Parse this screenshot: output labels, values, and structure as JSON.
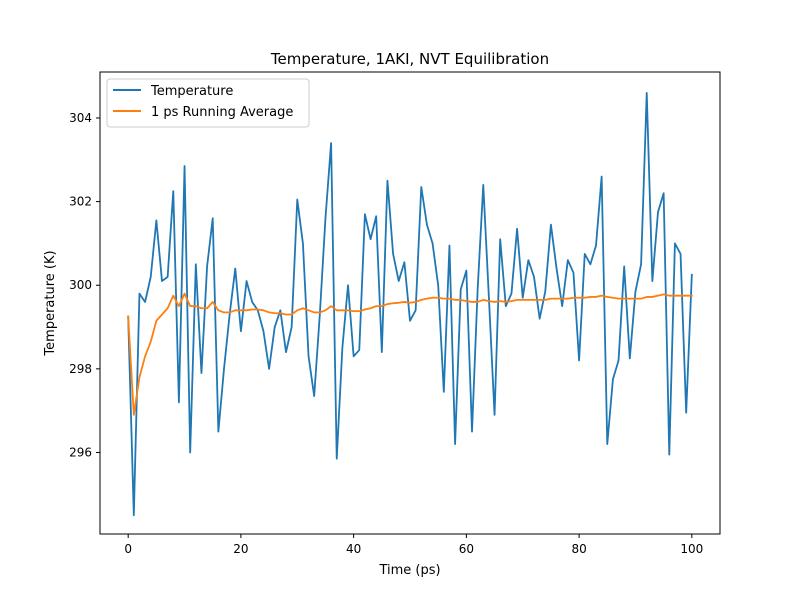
{
  "chart_data": {
    "type": "line",
    "title": "Temperature, 1AKI, NVT Equilibration",
    "xlabel": "Time (ps)",
    "ylabel": "Temperature (K)",
    "xlim": [
      -5,
      105
    ],
    "ylim": [
      294.05,
      305.1
    ],
    "xticks": [
      0,
      20,
      40,
      60,
      80,
      100
    ],
    "yticks": [
      296,
      298,
      300,
      302,
      304
    ],
    "grid": false,
    "legend": "top-left",
    "x": [
      0,
      1,
      2,
      3,
      4,
      5,
      6,
      7,
      8,
      9,
      10,
      11,
      12,
      13,
      14,
      15,
      16,
      17,
      18,
      19,
      20,
      21,
      22,
      23,
      24,
      25,
      26,
      27,
      28,
      29,
      30,
      31,
      32,
      33,
      34,
      35,
      36,
      37,
      38,
      39,
      40,
      41,
      42,
      43,
      44,
      45,
      46,
      47,
      48,
      49,
      50,
      51,
      52,
      53,
      54,
      55,
      56,
      57,
      58,
      59,
      60,
      61,
      62,
      63,
      64,
      65,
      66,
      67,
      68,
      69,
      70,
      71,
      72,
      73,
      74,
      75,
      76,
      77,
      78,
      79,
      80,
      81,
      82,
      83,
      84,
      85,
      86,
      87,
      88,
      89,
      90,
      91,
      92,
      93,
      94,
      95,
      96,
      97,
      98,
      99,
      100
    ],
    "series": [
      {
        "name": "Temperature",
        "color": "#1f77b4",
        "values": [
          299.25,
          294.5,
          299.8,
          299.6,
          300.2,
          301.55,
          300.1,
          300.2,
          302.25,
          297.2,
          302.85,
          296.0,
          300.5,
          297.9,
          300.45,
          301.6,
          296.5,
          298.0,
          299.3,
          300.4,
          298.9,
          300.1,
          299.6,
          299.4,
          298.9,
          298.0,
          299.0,
          299.4,
          298.4,
          299.0,
          302.05,
          301.0,
          298.3,
          297.35,
          299.3,
          301.6,
          303.4,
          295.85,
          298.5,
          300.0,
          298.3,
          298.45,
          301.7,
          301.1,
          301.65,
          298.4,
          302.5,
          300.75,
          300.1,
          300.55,
          299.15,
          299.4,
          302.35,
          301.45,
          301.0,
          300.0,
          297.45,
          300.95,
          296.2,
          299.9,
          300.35,
          296.5,
          299.9,
          302.4,
          299.7,
          296.9,
          301.1,
          299.5,
          299.8,
          301.35,
          299.7,
          300.6,
          300.2,
          299.2,
          299.85,
          301.45,
          300.4,
          299.5,
          300.6,
          300.3,
          298.2,
          300.75,
          300.5,
          300.95,
          302.6,
          296.2,
          297.75,
          298.2,
          300.45,
          298.25,
          299.85,
          300.5,
          304.6,
          300.1,
          301.75,
          302.2,
          295.95,
          301.0,
          300.75,
          296.95,
          300.25
        ]
      },
      {
        "name": "1 ps Running Average",
        "color": "#ff7f0e",
        "values": [
          299.25,
          296.9,
          297.8,
          298.3,
          298.65,
          299.15,
          299.3,
          299.45,
          299.75,
          299.5,
          299.8,
          299.5,
          299.5,
          299.45,
          299.45,
          299.6,
          299.4,
          299.35,
          299.35,
          299.4,
          299.4,
          299.4,
          299.42,
          299.42,
          299.4,
          299.35,
          299.33,
          299.33,
          299.3,
          299.3,
          299.4,
          299.45,
          299.4,
          299.35,
          299.35,
          299.4,
          299.5,
          299.4,
          299.4,
          299.4,
          299.38,
          299.38,
          299.42,
          299.45,
          299.5,
          299.5,
          299.55,
          299.57,
          299.58,
          299.6,
          299.58,
          299.6,
          299.65,
          299.68,
          299.7,
          299.7,
          299.68,
          299.68,
          299.65,
          299.65,
          299.62,
          299.6,
          299.6,
          299.65,
          299.62,
          299.6,
          299.62,
          299.6,
          299.62,
          299.65,
          299.65,
          299.65,
          299.65,
          299.65,
          299.65,
          299.68,
          299.68,
          299.68,
          299.68,
          299.7,
          299.7,
          299.7,
          299.72,
          299.72,
          299.75,
          299.72,
          299.7,
          299.68,
          299.68,
          299.68,
          299.68,
          299.68,
          299.72,
          299.72,
          299.75,
          299.78,
          299.75,
          299.75,
          299.75,
          299.75,
          299.75
        ]
      }
    ]
  }
}
